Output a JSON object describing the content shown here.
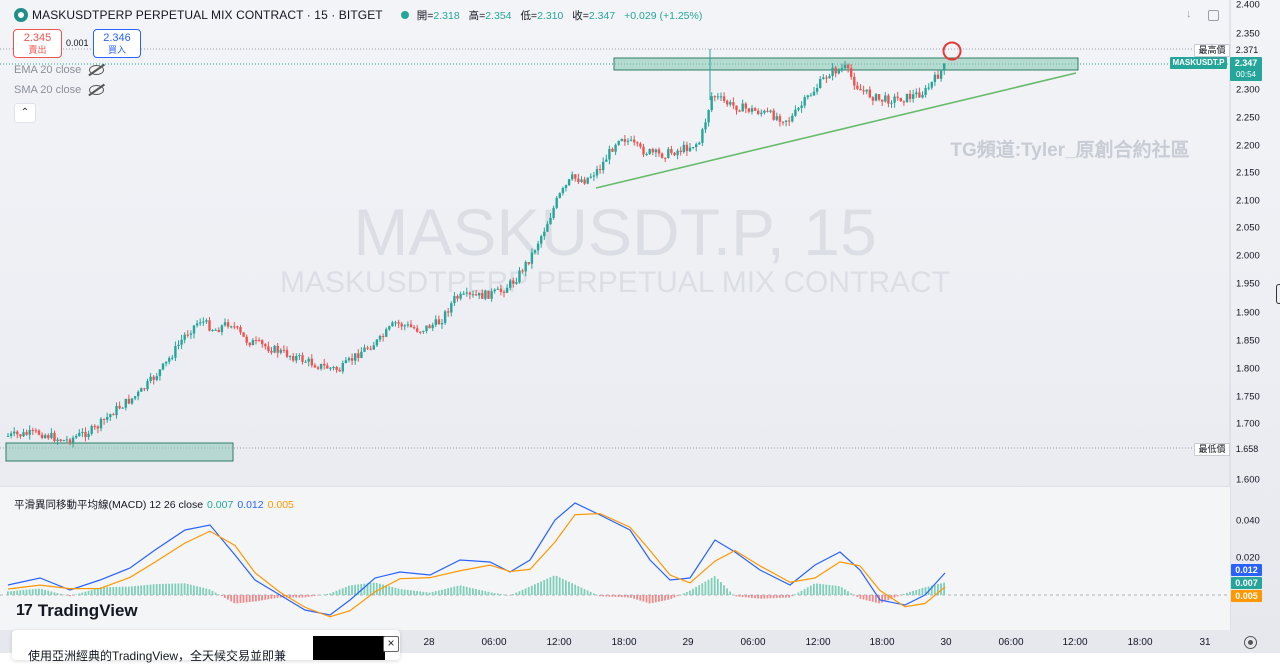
{
  "header": {
    "title": "MASKUSDTPERP PERPETUAL MIX CONTRACT · 15 · BITGET",
    "open_label": "開=",
    "open": "2.318",
    "high_label": "高=",
    "high": "2.354",
    "low_label": "低=",
    "low": "2.310",
    "close_label": "收=",
    "close": "2.347",
    "change": "+0.029 (+1.25%)"
  },
  "trade": {
    "sell_price": "2.345",
    "sell_label": "賣出",
    "spread": "0.001",
    "buy_price": "2.346",
    "buy_label": "買入"
  },
  "indicators": {
    "ema": "EMA 20 close",
    "sma": "SMA 20 close"
  },
  "watermark": {
    "symbol": "MASKUSDT.P, 15",
    "name": "MASKUSDTPERP PERPETUAL MIX CONTRACT",
    "author": "TG頻道:Tyler_原創合約社區"
  },
  "macd": {
    "label": "平滑異同移動平均線(MACD) 12 26 close",
    "hist": "0.007",
    "macd": "0.012",
    "signal": "0.005",
    "axis": [
      "0.040",
      "0.020"
    ]
  },
  "price_axis": [
    "2.400",
    "2.350",
    "2.300",
    "2.250",
    "2.200",
    "2.150",
    "2.100",
    "2.050",
    "2.000",
    "1.950",
    "1.900",
    "1.850",
    "1.800",
    "1.750",
    "1.700",
    "1.600"
  ],
  "tags": {
    "high_label": "最高價",
    "high": "2.371",
    "symbol": "MASKUSDT.P",
    "last": "2.347",
    "countdown": "00:54",
    "low_label": "最低價",
    "low": "1.658",
    "hist": "0.007",
    "macd": "0.012",
    "signal": "0.005"
  },
  "time_axis": [
    "28",
    "06:00",
    "12:00",
    "18:00",
    "29",
    "06:00",
    "12:00",
    "18:00",
    "30",
    "06:00",
    "12:00",
    "18:00",
    "31"
  ],
  "branding": {
    "logo": "TradingView"
  },
  "banner": {
    "text": "使用亞洲經典的TradingView，全天候交易並即兼"
  },
  "colors": {
    "up": "#26a69a",
    "down": "#ef5350",
    "macd": "#2962ff",
    "signal": "#ff9800",
    "zone": "#8cc9b8",
    "trend": "#66bb6a",
    "marker": "#e53935"
  }
}
